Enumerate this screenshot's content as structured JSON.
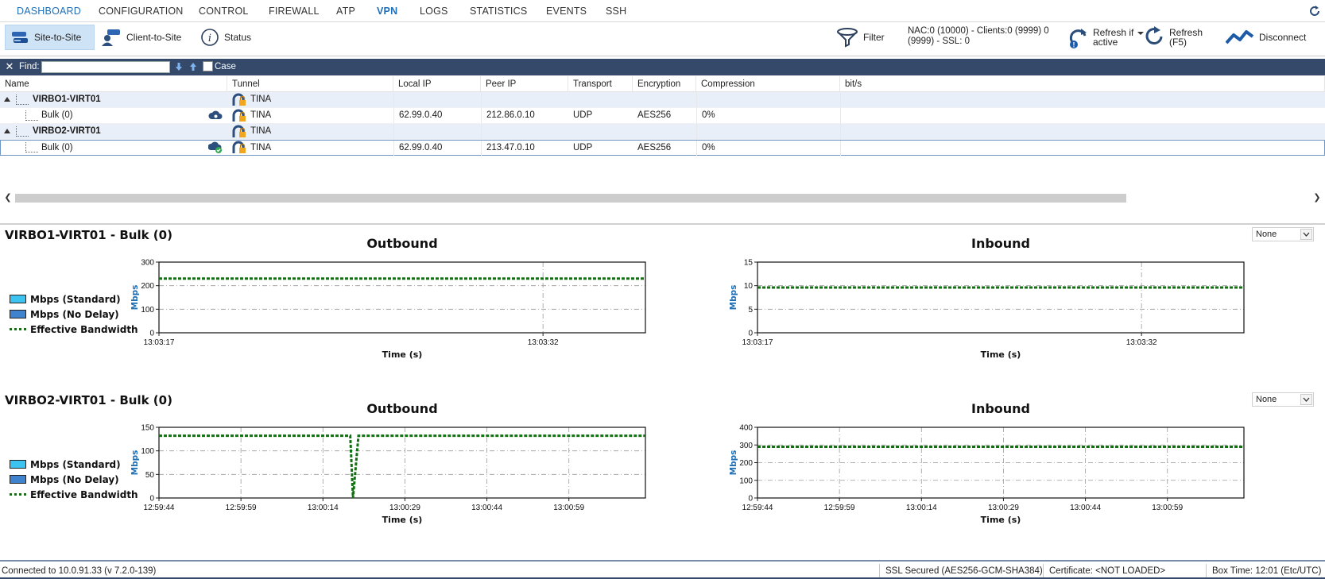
{
  "nav": {
    "tabs": [
      "DASHBOARD",
      "CONFIGURATION",
      "CONTROL",
      "FIREWALL",
      "ATP",
      "VPN",
      "LOGS",
      "STATISTICS",
      "EVENTS",
      "SSH"
    ],
    "active_tab": "VPN"
  },
  "toolbar": {
    "site_to_site": "Site-to-Site",
    "client_to_site": "Client-to-Site",
    "status": "Status",
    "filter": "Filter",
    "nac_line1": "NAC:0 (10000) - Clients:0 (9999) 0",
    "nac_line2": "(9999) - SSL: 0",
    "refresh_if_active_line1": "Refresh if",
    "refresh_if_active_line2": "active",
    "refresh_line1": "Refresh",
    "refresh_line2": "(F5)",
    "disconnect": "Disconnect"
  },
  "find": {
    "label": "Find:",
    "value": "",
    "case_label": "Case"
  },
  "grid": {
    "columns": [
      "Name",
      "Tunnel",
      "Local IP",
      "Peer IP",
      "Transport",
      "Encryption",
      "Compression",
      "bit/s"
    ],
    "rows": [
      {
        "name": "VIRBO1-VIRT01",
        "tunnel": "TINA",
        "local_ip": "",
        "peer_ip": "",
        "transport": "",
        "encryption": "",
        "compression": "",
        "bits": ""
      },
      {
        "name": "Bulk (0)",
        "tunnel": "TINA",
        "local_ip": "62.99.0.40",
        "peer_ip": "212.86.0.10",
        "transport": "UDP",
        "encryption": "AES256",
        "compression": "0%",
        "bits": ""
      },
      {
        "name": "VIRBO2-VIRT01",
        "tunnel": "TINA",
        "local_ip": "",
        "peer_ip": "",
        "transport": "",
        "encryption": "",
        "compression": "",
        "bits": ""
      },
      {
        "name": "Bulk (0)",
        "tunnel": "TINA",
        "local_ip": "62.99.0.40",
        "peer_ip": "213.47.0.10",
        "transport": "UDP",
        "encryption": "AES256",
        "compression": "0%",
        "bits": ""
      }
    ]
  },
  "sections": [
    {
      "title": "VIRBO1-VIRT01 - Bulk (0)",
      "dropdown": "None"
    },
    {
      "title": "VIRBO2-VIRT01 - Bulk (0)",
      "dropdown": "None"
    }
  ],
  "legend": {
    "standard": "Mbps (Standard)",
    "no_delay": "Mbps (No Delay)",
    "effective": "Effective Bandwidth"
  },
  "colors": {
    "standard": "#3cc3ef",
    "no_delay": "#3f83cf",
    "effective": "#127012",
    "axis_label": "#1f6fb7",
    "header_bar": "#35496b"
  },
  "chart_data": [
    {
      "type": "line",
      "title": "Outbound",
      "xlabel": "Time (s)",
      "ylabel": "Mbps",
      "ylim": [
        0,
        300
      ],
      "yticks": [
        0,
        100,
        200,
        300
      ],
      "xticks": [
        "13:03:17",
        "13:03:32"
      ],
      "xrange": [
        0,
        19
      ],
      "xtick_pos": [
        0,
        15
      ],
      "grid": true,
      "series": [
        {
          "name": "Effective Bandwidth",
          "x": [
            0,
            19
          ],
          "y": [
            230,
            230
          ]
        }
      ]
    },
    {
      "type": "line",
      "title": "Inbound",
      "xlabel": "Time (s)",
      "ylabel": "Mbps",
      "ylim": [
        0,
        15
      ],
      "yticks": [
        0,
        5,
        10,
        15
      ],
      "xticks": [
        "13:03:17",
        "13:03:32"
      ],
      "xrange": [
        0,
        19
      ],
      "xtick_pos": [
        0,
        15
      ],
      "grid": true,
      "series": [
        {
          "name": "Effective Bandwidth",
          "x": [
            0,
            19
          ],
          "y": [
            9.6,
            9.6
          ]
        }
      ]
    },
    {
      "type": "line",
      "title": "Outbound",
      "xlabel": "Time (s)",
      "ylabel": "Mbps",
      "ylim": [
        0,
        150
      ],
      "yticks": [
        0,
        50,
        100,
        150
      ],
      "xticks": [
        "12:59:44",
        "12:59:59",
        "13:00:14",
        "13:00:29",
        "13:00:44",
        "13:00:59"
      ],
      "xrange": [
        0,
        89
      ],
      "xtick_pos": [
        0,
        15,
        30,
        45,
        60,
        75
      ],
      "grid": true,
      "series": [
        {
          "name": "Effective Bandwidth",
          "x": [
            0,
            35,
            35.5,
            36.5,
            89
          ],
          "y": [
            132,
            132,
            0,
            132,
            132
          ]
        }
      ]
    },
    {
      "type": "line",
      "title": "Inbound",
      "xlabel": "Time (s)",
      "ylabel": "Mbps",
      "ylim": [
        0,
        400
      ],
      "yticks": [
        0,
        100,
        200,
        300,
        400
      ],
      "xticks": [
        "12:59:44",
        "12:59:59",
        "13:00:14",
        "13:00:29",
        "13:00:44",
        "13:00:59"
      ],
      "xrange": [
        0,
        89
      ],
      "xtick_pos": [
        0,
        15,
        30,
        45,
        60,
        75
      ],
      "grid": true,
      "series": [
        {
          "name": "Effective Bandwidth",
          "x": [
            0,
            89
          ],
          "y": [
            290,
            290
          ]
        }
      ]
    }
  ],
  "status": {
    "connected": "Connected to 10.0.91.33 (v 7.2.0-139)",
    "ssl": "SSL Secured (AES256-GCM-SHA384)",
    "certificate": "Certificate: <NOT LOADED>",
    "boxtime": "Box Time: 12:01 (Etc/UTC)"
  }
}
